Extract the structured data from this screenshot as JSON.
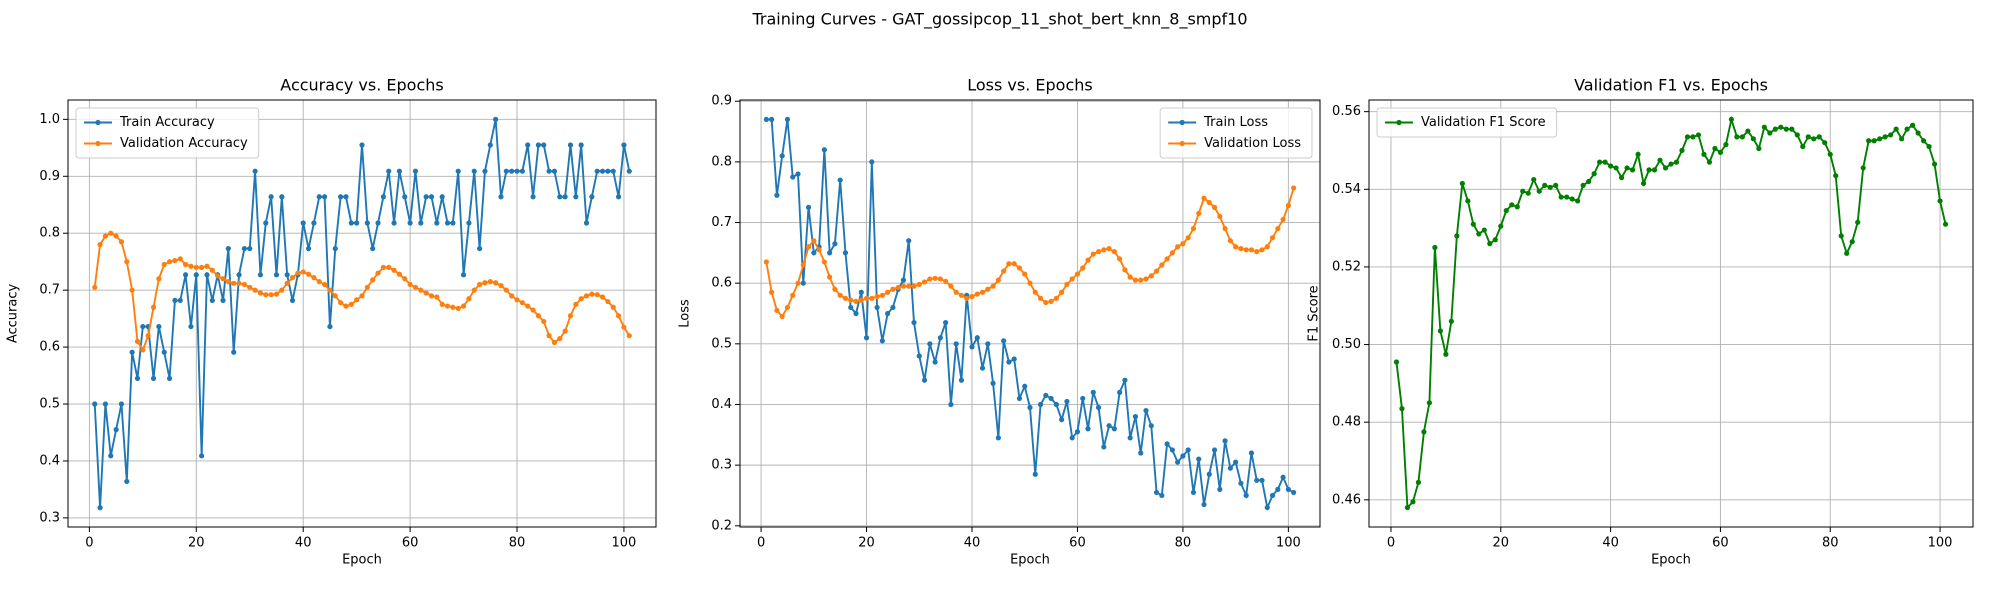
{
  "title": "Training Curves - GAT_gossipcop_11_shot_bert_knn_8_smpf10",
  "chart_data": [
    {
      "type": "line",
      "title": "Accuracy vs. Epochs",
      "xlabel": "Epoch",
      "ylabel": "Accuracy",
      "grid": true,
      "legend": "upper left",
      "x": [
        1,
        2,
        3,
        4,
        5,
        6,
        7,
        8,
        9,
        10,
        11,
        12,
        13,
        14,
        15,
        16,
        17,
        18,
        19,
        20,
        21,
        22,
        23,
        24,
        25,
        26,
        27,
        28,
        29,
        30,
        31,
        32,
        33,
        34,
        35,
        36,
        37,
        38,
        39,
        40,
        41,
        42,
        43,
        44,
        45,
        46,
        47,
        48,
        49,
        50,
        51,
        52,
        53,
        54,
        55,
        56,
        57,
        58,
        59,
        60,
        61,
        62,
        63,
        64,
        65,
        66,
        67,
        68,
        69,
        70,
        71,
        72,
        73,
        74,
        75,
        76,
        77,
        78,
        79,
        80,
        81,
        82,
        83,
        84,
        85,
        86,
        87,
        88,
        89,
        90,
        91,
        92,
        93,
        94,
        95,
        96,
        97,
        98,
        99,
        100,
        101
      ],
      "xlim": [
        -4,
        106
      ],
      "xticks": [
        0,
        20,
        40,
        60,
        80,
        100
      ],
      "ylim": [
        0.284,
        1.034
      ],
      "yticks": [
        0.3,
        0.4,
        0.5,
        0.6,
        0.7,
        0.8,
        0.9,
        {
          "value": 1,
          "label": "1.0"
        }
      ],
      "series": [
        {
          "name": "Train Accuracy",
          "color": "#1f77b4",
          "values": [
            0.5,
            0.318,
            0.5,
            0.409,
            0.455,
            0.5,
            0.364,
            0.591,
            0.545,
            0.636,
            0.636,
            0.545,
            0.636,
            0.591,
            0.545,
            0.682,
            0.682,
            0.727,
            0.636,
            0.727,
            0.409,
            0.727,
            0.682,
            0.727,
            0.682,
            0.773,
            0.591,
            0.727,
            0.773,
            0.773,
            0.909,
            0.727,
            0.818,
            0.864,
            0.727,
            0.864,
            0.727,
            0.682,
            0.727,
            0.818,
            0.773,
            0.818,
            0.864,
            0.864,
            0.636,
            0.773,
            0.864,
            0.864,
            0.818,
            0.818,
            0.955,
            0.818,
            0.773,
            0.818,
            0.864,
            0.909,
            0.818,
            0.909,
            0.864,
            0.818,
            0.909,
            0.818,
            0.864,
            0.864,
            0.818,
            0.864,
            0.818,
            0.818,
            0.909,
            0.727,
            0.818,
            0.909,
            0.773,
            0.909,
            0.955,
            1.0,
            0.864,
            0.909,
            0.909,
            0.909,
            0.909,
            0.955,
            0.864,
            0.955,
            0.955,
            0.909,
            0.909,
            0.864,
            0.864,
            0.955,
            0.864,
            0.955,
            0.818,
            0.864,
            0.909,
            0.909,
            0.909,
            0.909,
            0.864,
            0.955,
            0.909
          ]
        },
        {
          "name": "Validation Accuracy",
          "color": "#ff7f0e",
          "values": [
            0.705,
            0.78,
            0.795,
            0.8,
            0.795,
            0.785,
            0.75,
            0.7,
            0.61,
            0.595,
            0.62,
            0.67,
            0.72,
            0.745,
            0.75,
            0.752,
            0.755,
            0.745,
            0.742,
            0.74,
            0.74,
            0.742,
            0.735,
            0.725,
            0.72,
            0.715,
            0.712,
            0.712,
            0.71,
            0.705,
            0.7,
            0.695,
            0.692,
            0.692,
            0.693,
            0.7,
            0.712,
            0.722,
            0.73,
            0.732,
            0.728,
            0.722,
            0.715,
            0.71,
            0.7,
            0.69,
            0.678,
            0.672,
            0.675,
            0.683,
            0.69,
            0.705,
            0.718,
            0.73,
            0.74,
            0.74,
            0.735,
            0.728,
            0.72,
            0.71,
            0.705,
            0.7,
            0.695,
            0.69,
            0.688,
            0.675,
            0.672,
            0.67,
            0.668,
            0.672,
            0.685,
            0.7,
            0.71,
            0.713,
            0.715,
            0.713,
            0.708,
            0.7,
            0.69,
            0.683,
            0.678,
            0.672,
            0.665,
            0.655,
            0.645,
            0.62,
            0.608,
            0.615,
            0.628,
            0.655,
            0.675,
            0.685,
            0.69,
            0.693,
            0.692,
            0.688,
            0.68,
            0.67,
            0.655,
            0.635,
            0.62
          ]
        }
      ]
    },
    {
      "type": "line",
      "title": "Loss vs. Epochs",
      "xlabel": "Epoch",
      "ylabel": "Loss",
      "grid": true,
      "legend": "upper right",
      "x": [
        1,
        2,
        3,
        4,
        5,
        6,
        7,
        8,
        9,
        10,
        11,
        12,
        13,
        14,
        15,
        16,
        17,
        18,
        19,
        20,
        21,
        22,
        23,
        24,
        25,
        26,
        27,
        28,
        29,
        30,
        31,
        32,
        33,
        34,
        35,
        36,
        37,
        38,
        39,
        40,
        41,
        42,
        43,
        44,
        45,
        46,
        47,
        48,
        49,
        50,
        51,
        52,
        53,
        54,
        55,
        56,
        57,
        58,
        59,
        60,
        61,
        62,
        63,
        64,
        65,
        66,
        67,
        68,
        69,
        70,
        71,
        72,
        73,
        74,
        75,
        76,
        77,
        78,
        79,
        80,
        81,
        82,
        83,
        84,
        85,
        86,
        87,
        88,
        89,
        90,
        91,
        92,
        93,
        94,
        95,
        96,
        97,
        98,
        99,
        100,
        101
      ],
      "xlim": [
        -4,
        106
      ],
      "xticks": [
        0,
        20,
        40,
        60,
        80,
        100
      ],
      "ylim": [
        0.198,
        0.902
      ],
      "yticks": [
        0.2,
        0.3,
        0.4,
        0.5,
        0.6,
        0.7,
        0.8,
        0.9
      ],
      "series": [
        {
          "name": "Train Loss",
          "color": "#1f77b4",
          "values": [
            0.87,
            0.87,
            0.745,
            0.81,
            0.87,
            0.775,
            0.78,
            0.6,
            0.725,
            0.65,
            0.66,
            0.82,
            0.65,
            0.665,
            0.77,
            0.65,
            0.56,
            0.55,
            0.585,
            0.51,
            0.8,
            0.56,
            0.505,
            0.55,
            0.56,
            0.59,
            0.605,
            0.67,
            0.535,
            0.48,
            0.44,
            0.5,
            0.47,
            0.51,
            0.535,
            0.4,
            0.5,
            0.44,
            0.58,
            0.495,
            0.51,
            0.46,
            0.5,
            0.435,
            0.345,
            0.505,
            0.47,
            0.475,
            0.41,
            0.43,
            0.395,
            0.285,
            0.4,
            0.415,
            0.41,
            0.4,
            0.375,
            0.405,
            0.345,
            0.355,
            0.41,
            0.36,
            0.42,
            0.395,
            0.33,
            0.365,
            0.36,
            0.42,
            0.44,
            0.345,
            0.38,
            0.32,
            0.39,
            0.365,
            0.255,
            0.25,
            0.335,
            0.325,
            0.305,
            0.315,
            0.325,
            0.255,
            0.31,
            0.235,
            0.285,
            0.325,
            0.26,
            0.34,
            0.295,
            0.305,
            0.27,
            0.25,
            0.32,
            0.275,
            0.275,
            0.23,
            0.25,
            0.26,
            0.28,
            0.26,
            0.255
          ]
        },
        {
          "name": "Validation Loss",
          "color": "#ff7f0e",
          "values": [
            0.635,
            0.585,
            0.555,
            0.545,
            0.56,
            0.58,
            0.6,
            0.63,
            0.66,
            0.67,
            0.655,
            0.635,
            0.61,
            0.59,
            0.58,
            0.575,
            0.572,
            0.57,
            0.572,
            0.575,
            0.575,
            0.578,
            0.58,
            0.585,
            0.59,
            0.593,
            0.595,
            0.595,
            0.595,
            0.598,
            0.602,
            0.607,
            0.608,
            0.607,
            0.603,
            0.595,
            0.585,
            0.58,
            0.575,
            0.578,
            0.582,
            0.585,
            0.59,
            0.595,
            0.605,
            0.62,
            0.632,
            0.632,
            0.625,
            0.615,
            0.6,
            0.585,
            0.575,
            0.568,
            0.57,
            0.575,
            0.585,
            0.598,
            0.607,
            0.615,
            0.625,
            0.638,
            0.648,
            0.652,
            0.655,
            0.657,
            0.652,
            0.64,
            0.622,
            0.61,
            0.605,
            0.605,
            0.607,
            0.612,
            0.62,
            0.63,
            0.64,
            0.65,
            0.66,
            0.665,
            0.675,
            0.69,
            0.715,
            0.74,
            0.733,
            0.725,
            0.71,
            0.69,
            0.67,
            0.66,
            0.657,
            0.655,
            0.655,
            0.652,
            0.655,
            0.66,
            0.675,
            0.69,
            0.705,
            0.728,
            0.757
          ]
        }
      ]
    },
    {
      "type": "line",
      "title": "Validation F1 vs. Epochs",
      "xlabel": "Epoch",
      "ylabel": "F1 Score",
      "grid": true,
      "legend": "upper left",
      "x": [
        1,
        2,
        3,
        4,
        5,
        6,
        7,
        8,
        9,
        10,
        11,
        12,
        13,
        14,
        15,
        16,
        17,
        18,
        19,
        20,
        21,
        22,
        23,
        24,
        25,
        26,
        27,
        28,
        29,
        30,
        31,
        32,
        33,
        34,
        35,
        36,
        37,
        38,
        39,
        40,
        41,
        42,
        43,
        44,
        45,
        46,
        47,
        48,
        49,
        50,
        51,
        52,
        53,
        54,
        55,
        56,
        57,
        58,
        59,
        60,
        61,
        62,
        63,
        64,
        65,
        66,
        67,
        68,
        69,
        70,
        71,
        72,
        73,
        74,
        75,
        76,
        77,
        78,
        79,
        80,
        81,
        82,
        83,
        84,
        85,
        86,
        87,
        88,
        89,
        90,
        91,
        92,
        93,
        94,
        95,
        96,
        97,
        98,
        99,
        100,
        101
      ],
      "xlim": [
        -4,
        106
      ],
      "xticks": [
        0,
        20,
        40,
        60,
        80,
        100
      ],
      "ylim": [
        0.453,
        0.563
      ],
      "yticks": [
        0.46,
        0.48,
        {
          "value": 0.5,
          "label": "0.50"
        },
        0.52,
        0.54,
        0.56
      ],
      "series": [
        {
          "name": "Validation F1 Score",
          "color": "#008000",
          "values": [
            0.4955,
            0.4835,
            0.458,
            0.4595,
            0.4645,
            0.4775,
            0.485,
            0.525,
            0.5035,
            0.4975,
            0.506,
            0.528,
            0.5415,
            0.537,
            0.531,
            0.5285,
            0.5295,
            0.526,
            0.527,
            0.5305,
            0.5345,
            0.536,
            0.5355,
            0.5395,
            0.539,
            0.5425,
            0.5395,
            0.541,
            0.5405,
            0.541,
            0.538,
            0.538,
            0.5375,
            0.537,
            0.541,
            0.542,
            0.544,
            0.547,
            0.547,
            0.546,
            0.5455,
            0.543,
            0.5455,
            0.545,
            0.549,
            0.5415,
            0.545,
            0.545,
            0.5475,
            0.5455,
            0.5465,
            0.547,
            0.55,
            0.5535,
            0.5535,
            0.554,
            0.549,
            0.547,
            0.5505,
            0.5495,
            0.5515,
            0.558,
            0.5535,
            0.5535,
            0.555,
            0.553,
            0.5505,
            0.556,
            0.5545,
            0.5555,
            0.556,
            0.5555,
            0.5555,
            0.554,
            0.551,
            0.5535,
            0.553,
            0.5535,
            0.552,
            0.549,
            0.5435,
            0.528,
            0.5235,
            0.5265,
            0.5315,
            0.5455,
            0.5525,
            0.5525,
            0.553,
            0.5535,
            0.554,
            0.5555,
            0.553,
            0.5555,
            0.5565,
            0.5545,
            0.5525,
            0.551,
            0.5465,
            0.537,
            0.531
          ]
        }
      ]
    }
  ]
}
